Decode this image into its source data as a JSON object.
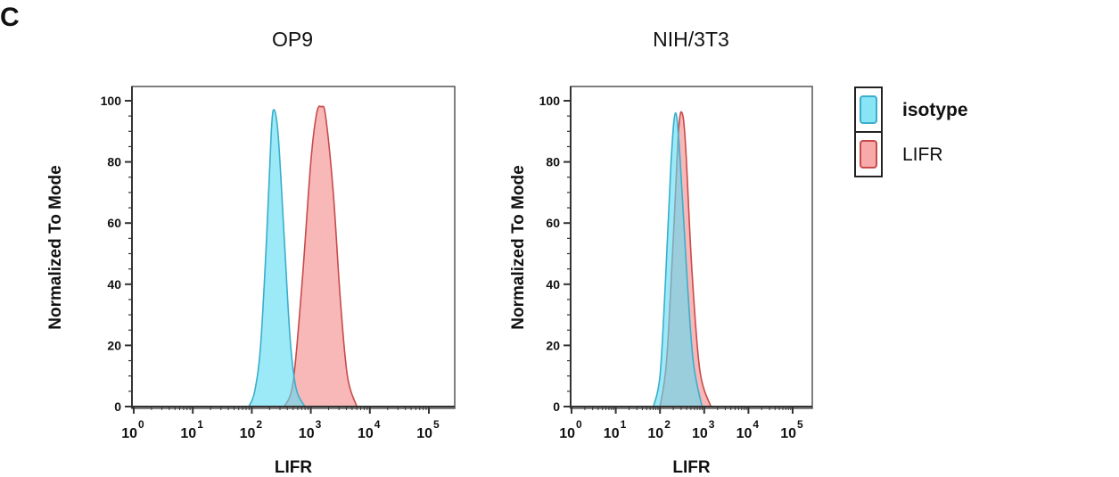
{
  "panel_label": "C",
  "legend": {
    "items": [
      {
        "label": "isotype",
        "fill": "#5fdcf3",
        "stroke": "#3aaecb"
      },
      {
        "label": "LIFR",
        "fill": "#f58c8c",
        "stroke": "#c84a4a"
      }
    ]
  },
  "chart_data": [
    {
      "type": "area",
      "title": "OP9",
      "xlabel": "LIFR",
      "ylabel": "Normalized To Mode",
      "xscale": "log",
      "xlim": [
        1,
        100000
      ],
      "ylim": [
        0,
        100
      ],
      "xticks": [
        "0",
        "1",
        "2",
        "3",
        "4",
        "5"
      ],
      "yticks": [
        0,
        20,
        40,
        60,
        80,
        100
      ],
      "grid": false,
      "legend": "right",
      "series": [
        {
          "name": "LIFR",
          "x": [
            355,
            501,
            708,
            1000,
            1259,
            1514,
            1778,
            2399,
            3162,
            4169,
            6026
          ],
          "y": [
            0,
            8,
            40,
            80,
            96,
            98,
            95,
            70,
            35,
            10,
            0
          ]
        },
        {
          "name": "isotype",
          "x": [
            89,
            112,
            141,
            178,
            214,
            240,
            282,
            355,
            447,
            562,
            794
          ],
          "y": [
            0,
            5,
            20,
            55,
            90,
            97,
            88,
            55,
            22,
            6,
            0
          ]
        }
      ]
    },
    {
      "type": "area",
      "title": "NIH/3T3",
      "xlabel": "LIFR",
      "ylabel": "Normalized To Mode",
      "xscale": "log",
      "xlim": [
        1,
        100000
      ],
      "ylim": [
        0,
        100
      ],
      "xticks": [
        "0",
        "1",
        "2",
        "3",
        "4",
        "5"
      ],
      "yticks": [
        0,
        20,
        40,
        60,
        80,
        100
      ],
      "grid": false,
      "legend": "right",
      "series": [
        {
          "name": "LIFR",
          "x": [
            100,
            141,
            200,
            263,
            316,
            380,
            525,
            794,
            1413
          ],
          "y": [
            0,
            15,
            55,
            90,
            96,
            85,
            45,
            12,
            0
          ]
        },
        {
          "name": "isotype",
          "x": [
            71,
            100,
            132,
            178,
            224,
            282,
            398,
            562,
            891
          ],
          "y": [
            0,
            10,
            40,
            80,
            96,
            82,
            45,
            15,
            0
          ]
        }
      ]
    }
  ]
}
